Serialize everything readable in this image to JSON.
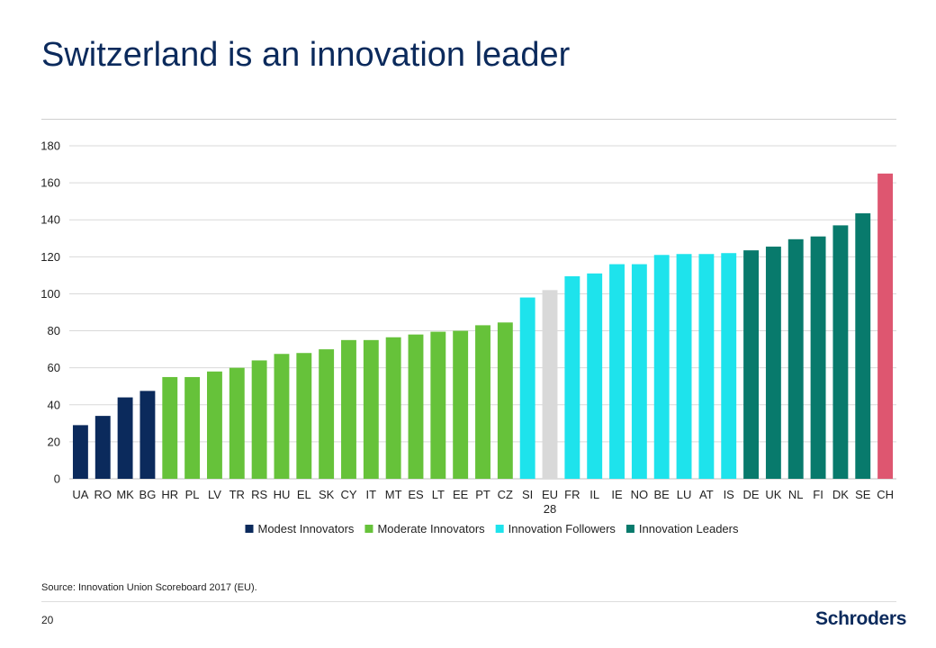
{
  "slide": {
    "title": "Switzerland is an innovation leader",
    "source": "Source: Innovation Union Scoreboard 2017 (EU).",
    "page_number": "20",
    "logo": "Schroders"
  },
  "colors": {
    "title": "#0b2a5c",
    "modest": "#0b2a5c",
    "moderate": "#66c23a",
    "followers": "#1ee3ec",
    "leaders": "#087a6c",
    "eu28": "#d9d9d9",
    "ch": "#de5670",
    "gridline": "#d9d9d9"
  },
  "chart_data": {
    "type": "bar",
    "title": "",
    "xlabel": "",
    "ylabel": "",
    "ylim": [
      0,
      180
    ],
    "yticks": [
      0,
      20,
      40,
      60,
      80,
      100,
      120,
      140,
      160,
      180
    ],
    "grid": true,
    "legend_position": "bottom",
    "categories": [
      "UA",
      "RO",
      "MK",
      "BG",
      "HR",
      "PL",
      "LV",
      "TR",
      "RS",
      "HU",
      "EL",
      "SK",
      "CY",
      "IT",
      "MT",
      "ES",
      "LT",
      "EE",
      "PT",
      "CZ",
      "SI",
      "EU 28",
      "FR",
      "IL",
      "IE",
      "NO",
      "BE",
      "LU",
      "AT",
      "IS",
      "DE",
      "UK",
      "NL",
      "FI",
      "DK",
      "SE",
      "CH"
    ],
    "values": [
      29,
      34,
      44,
      47.5,
      55,
      55,
      58,
      60,
      64,
      67.5,
      68,
      70,
      75,
      75,
      76.5,
      78,
      79.5,
      80,
      83,
      84.5,
      98,
      102,
      109.5,
      111,
      116,
      116,
      121,
      121.5,
      121.5,
      122,
      123.5,
      125.5,
      129.5,
      131,
      137,
      143.5,
      165
    ],
    "groups": [
      "modest",
      "modest",
      "modest",
      "modest",
      "moderate",
      "moderate",
      "moderate",
      "moderate",
      "moderate",
      "moderate",
      "moderate",
      "moderate",
      "moderate",
      "moderate",
      "moderate",
      "moderate",
      "moderate",
      "moderate",
      "moderate",
      "moderate",
      "followers",
      "eu28",
      "followers",
      "followers",
      "followers",
      "followers",
      "followers",
      "followers",
      "followers",
      "followers",
      "leaders",
      "leaders",
      "leaders",
      "leaders",
      "leaders",
      "leaders",
      "ch"
    ],
    "legend": [
      {
        "key": "modest",
        "label": "Modest Innovators"
      },
      {
        "key": "moderate",
        "label": "Moderate Innovators"
      },
      {
        "key": "followers",
        "label": "Innovation Followers"
      },
      {
        "key": "leaders",
        "label": "Innovation Leaders"
      }
    ]
  }
}
